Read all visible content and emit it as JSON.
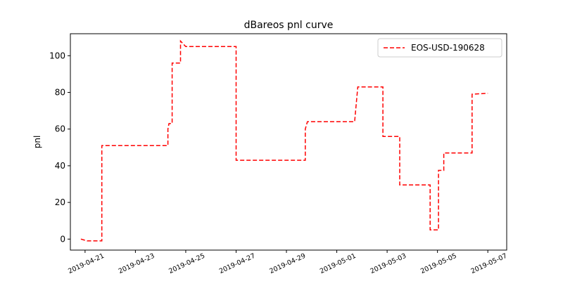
{
  "chart_data": {
    "type": "line",
    "title": "dBareos pnl curve",
    "xlabel": "",
    "ylabel": "pnl",
    "x_type": "date",
    "xlim": [
      "2019-04-20T10:00",
      "2019-05-07T18:00"
    ],
    "ylim": [
      -6,
      112
    ],
    "x_ticks": [
      "2019-04-21",
      "2019-04-23",
      "2019-04-25",
      "2019-04-27",
      "2019-04-29",
      "2019-05-01",
      "2019-05-03",
      "2019-05-05",
      "2019-05-07"
    ],
    "y_ticks": [
      0,
      20,
      40,
      60,
      80,
      100
    ],
    "grid": false,
    "legend_position": "top-right",
    "series": [
      {
        "name": "EOS-USD-190628",
        "color": "#ff0000",
        "line_style": "dashed",
        "x": [
          "2019-04-20T20:00",
          "2019-04-21T02:00",
          "2019-04-21T02:00",
          "2019-04-21T16:00",
          "2019-04-21T16:00",
          "2019-04-24T07:00",
          "2019-04-24T07:00",
          "2019-04-24T08:00",
          "2019-04-24T08:00",
          "2019-04-24T11:00",
          "2019-04-24T11:00",
          "2019-04-24T12:00",
          "2019-04-24T13:00",
          "2019-04-24T19:00",
          "2019-04-24T19:00",
          "2019-04-25T00:00",
          "2019-04-25T00:00",
          "2019-04-25T00:00",
          "2019-04-25T00:00",
          "2019-04-27T00:00",
          "2019-04-27T00:00",
          "2019-04-29T18:00",
          "2019-04-29T18:00",
          "2019-04-29T20:00",
          "2019-04-29T20:00",
          "2019-04-30T12:00",
          "2019-04-30T12:00",
          "2019-05-01T17:00",
          "2019-05-01T20:00",
          "2019-05-02T20:00",
          "2019-05-02T20:00",
          "2019-05-03T12:00",
          "2019-05-03T12:00",
          "2019-05-04T17:00",
          "2019-05-04T17:00",
          "2019-05-05T01:00",
          "2019-05-05T01:00",
          "2019-05-05T06:00",
          "2019-05-05T06:00",
          "2019-05-06T09:00",
          "2019-05-06T09:00",
          "2019-05-07T00:00"
        ],
        "y": [
          0,
          -1,
          -1,
          -1,
          51,
          51,
          60,
          63,
          63,
          63,
          96,
          96,
          96,
          96,
          108,
          105,
          105,
          105,
          105,
          105,
          43,
          43,
          60,
          64,
          64,
          64,
          64,
          64,
          83,
          83,
          56,
          56,
          29.5,
          29.5,
          5,
          5,
          37.5,
          37.5,
          47,
          47,
          79,
          79.5
        ]
      }
    ]
  }
}
